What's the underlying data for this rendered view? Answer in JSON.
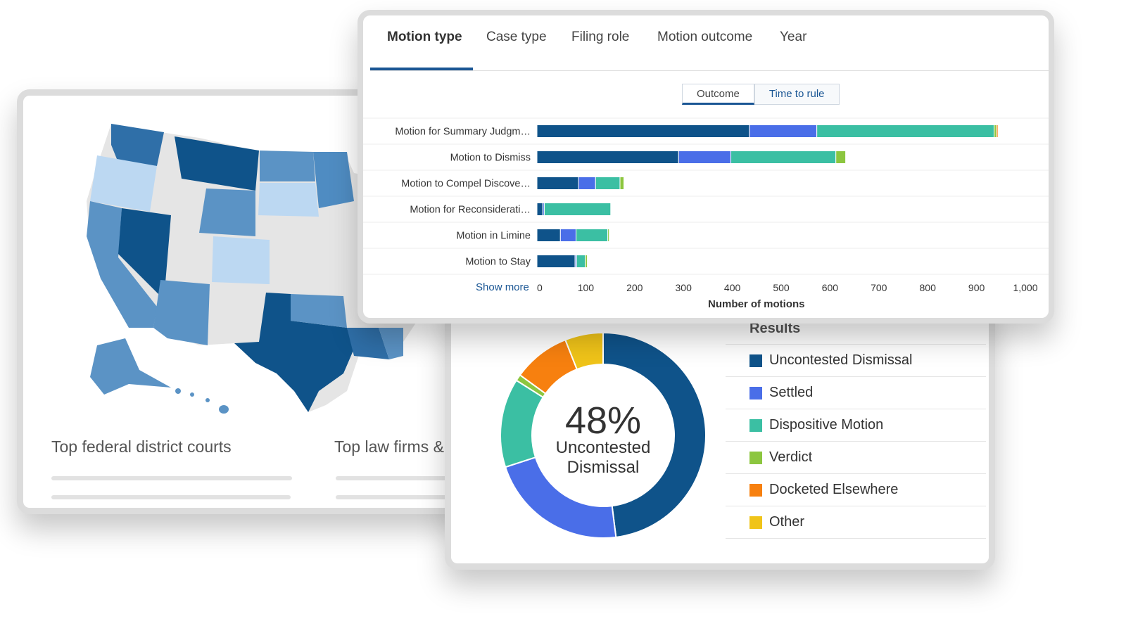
{
  "map_card": {
    "title_1": "Top federal district courts",
    "title_2": "Top law firms &"
  },
  "tabs": [
    {
      "label": "Motion type",
      "active": true
    },
    {
      "label": "Case type",
      "active": false
    },
    {
      "label": "Filing role",
      "active": false
    },
    {
      "label": "Motion outcome",
      "active": false
    },
    {
      "label": "Year",
      "active": false
    }
  ],
  "toggle": {
    "outcome": "Outcome",
    "time_to_rule": "Time to rule",
    "selected": "Outcome"
  },
  "show_more": "Show more",
  "colors": {
    "uncontested": "#0f538a",
    "settled": "#4a6ee8",
    "dispositive": "#3bbfa3",
    "verdict": "#8cc63f",
    "docketed": "#f7800f",
    "other": "#f0c419"
  },
  "chart_data": [
    {
      "type": "bar",
      "orientation": "horizontal",
      "stacked": true,
      "categories": [
        "Motion for Summary Judgm…",
        "Motion to Dismiss",
        "Motion to Compel Discove…",
        "Motion for Reconsiderati…",
        "Motion in Limine",
        "Motion to Stay"
      ],
      "series": [
        {
          "name": "Uncontested Dismissal",
          "values": [
            435,
            290,
            85,
            12,
            48,
            78
          ]
        },
        {
          "name": "Settled",
          "values": [
            138,
            107,
            35,
            3,
            32,
            3
          ]
        },
        {
          "name": "Dispositive Motion",
          "values": [
            363,
            215,
            50,
            136,
            65,
            18
          ]
        },
        {
          "name": "Verdict",
          "values": [
            5,
            20,
            8,
            0,
            3,
            4
          ]
        },
        {
          "name": "Docketed Elsewhere",
          "values": [
            3,
            0,
            0,
            0,
            0,
            0
          ]
        },
        {
          "name": "Other",
          "values": [
            0,
            0,
            0,
            0,
            0,
            0
          ]
        }
      ],
      "xlabel": "Number of motions",
      "xlim": [
        0,
        1000
      ],
      "xticks": [
        "0",
        "100",
        "200",
        "300",
        "400",
        "500",
        "600",
        "700",
        "800",
        "900",
        "1,000"
      ]
    },
    {
      "type": "pie",
      "donut": true,
      "center_value": "48%",
      "center_label": "Uncontested Dismissal",
      "legend_title": "Results",
      "labels": [
        "Uncontested Dismissal",
        "Settled",
        "Dispositive Motion",
        "Verdict",
        "Docketed Elsewhere",
        "Other"
      ],
      "values": [
        48,
        22,
        14,
        1,
        9,
        6
      ]
    }
  ]
}
